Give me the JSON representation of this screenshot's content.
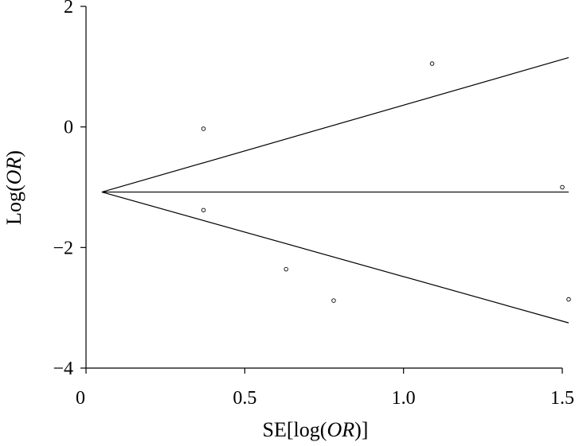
{
  "chart_data": {
    "type": "scatter",
    "title": "",
    "xlabel": {
      "prefix": "SE[log(",
      "italic": "OR",
      "suffix": ")]"
    },
    "ylabel": {
      "prefix": "Log(",
      "italic": "OR",
      "suffix": ")"
    },
    "xlim": [
      0,
      1.5
    ],
    "ylim": [
      -4,
      2
    ],
    "x_ticks": [
      {
        "value": 0,
        "label": "0"
      },
      {
        "value": 0.5,
        "label": "0.5"
      },
      {
        "value": 1.0,
        "label": "1.0"
      },
      {
        "value": 1.5,
        "label": "1.5"
      }
    ],
    "y_ticks": [
      {
        "value": 2,
        "label": "2"
      },
      {
        "value": 0,
        "label": "0"
      },
      {
        "value": -2,
        "label": "−2"
      },
      {
        "value": -4,
        "label": "−4"
      }
    ],
    "points": [
      {
        "x": 0.37,
        "y": -0.03
      },
      {
        "x": 0.37,
        "y": -1.38
      },
      {
        "x": 0.63,
        "y": -2.36
      },
      {
        "x": 0.78,
        "y": -2.88
      },
      {
        "x": 1.09,
        "y": 1.05
      },
      {
        "x": 1.5,
        "y": -1.0
      },
      {
        "x": 1.52,
        "y": -2.86
      }
    ],
    "pooled_estimate": -1.08,
    "funnel_lines": {
      "origin": {
        "x": 0.05,
        "y": -1.08
      },
      "upper_end": {
        "x": 1.52,
        "y": 1.15
      },
      "center_end": {
        "x": 1.52,
        "y": -1.08
      },
      "lower_end": {
        "x": 1.52,
        "y": -3.25
      }
    },
    "grid": false,
    "legend": "none"
  }
}
